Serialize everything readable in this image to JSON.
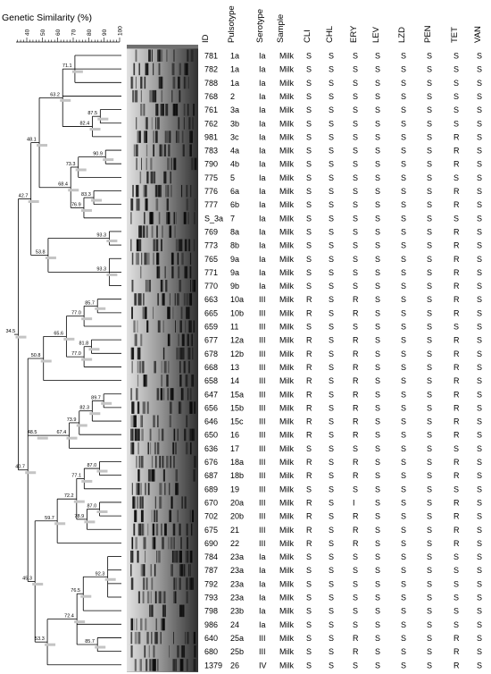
{
  "scale": {
    "title": "Genetic Similarity (%)",
    "ticks": [
      "40",
      "50",
      "60",
      "70",
      "80",
      "90",
      "100"
    ]
  },
  "headers": [
    "ID",
    "Pulsotype",
    "Serotype",
    "Sample",
    "CLI",
    "CHL",
    "ERY",
    "LEV",
    "LZD",
    "PEN",
    "TET",
    "VAN"
  ],
  "rows": [
    [
      "781",
      "1a",
      "Ia",
      "Milk",
      "S",
      "S",
      "S",
      "S",
      "S",
      "S",
      "S",
      "S"
    ],
    [
      "782",
      "1a",
      "Ia",
      "Milk",
      "S",
      "S",
      "S",
      "S",
      "S",
      "S",
      "S",
      "S"
    ],
    [
      "788",
      "1a",
      "Ia",
      "Milk",
      "S",
      "S",
      "S",
      "S",
      "S",
      "S",
      "S",
      "S"
    ],
    [
      "768",
      "2",
      "Ia",
      "Milk",
      "S",
      "S",
      "S",
      "S",
      "S",
      "S",
      "S",
      "S"
    ],
    [
      "761",
      "3a",
      "Ia",
      "Milk",
      "S",
      "S",
      "S",
      "S",
      "S",
      "S",
      "S",
      "S"
    ],
    [
      "762",
      "3b",
      "Ia",
      "Milk",
      "S",
      "S",
      "S",
      "S",
      "S",
      "S",
      "S",
      "S"
    ],
    [
      "981",
      "3c",
      "Ia",
      "Milk",
      "S",
      "S",
      "S",
      "S",
      "S",
      "S",
      "R",
      "S"
    ],
    [
      "783",
      "4a",
      "Ia",
      "Milk",
      "S",
      "S",
      "S",
      "S",
      "S",
      "S",
      "R",
      "S"
    ],
    [
      "790",
      "4b",
      "Ia",
      "Milk",
      "S",
      "S",
      "S",
      "S",
      "S",
      "S",
      "R",
      "S"
    ],
    [
      "775",
      "5",
      "Ia",
      "Milk",
      "S",
      "S",
      "S",
      "S",
      "S",
      "S",
      "S",
      "S"
    ],
    [
      "776",
      "6a",
      "Ia",
      "Milk",
      "S",
      "S",
      "S",
      "S",
      "S",
      "S",
      "R",
      "S"
    ],
    [
      "777",
      "6b",
      "Ia",
      "Milk",
      "S",
      "S",
      "S",
      "S",
      "S",
      "S",
      "R",
      "S"
    ],
    [
      "S_3a",
      "7",
      "Ia",
      "Milk",
      "S",
      "S",
      "S",
      "S",
      "S",
      "S",
      "S",
      "S"
    ],
    [
      "769",
      "8a",
      "Ia",
      "Milk",
      "S",
      "S",
      "S",
      "S",
      "S",
      "S",
      "R",
      "S"
    ],
    [
      "773",
      "8b",
      "Ia",
      "Milk",
      "S",
      "S",
      "S",
      "S",
      "S",
      "S",
      "R",
      "S"
    ],
    [
      "765",
      "9a",
      "Ia",
      "Milk",
      "S",
      "S",
      "S",
      "S",
      "S",
      "S",
      "R",
      "S"
    ],
    [
      "771",
      "9a",
      "Ia",
      "Milk",
      "S",
      "S",
      "S",
      "S",
      "S",
      "S",
      "R",
      "S"
    ],
    [
      "770",
      "9b",
      "Ia",
      "Milk",
      "S",
      "S",
      "S",
      "S",
      "S",
      "S",
      "R",
      "S"
    ],
    [
      "663",
      "10a",
      "III",
      "Milk",
      "R",
      "S",
      "R",
      "S",
      "S",
      "S",
      "R",
      "S"
    ],
    [
      "665",
      "10b",
      "III",
      "Milk",
      "R",
      "S",
      "R",
      "S",
      "S",
      "S",
      "R",
      "S"
    ],
    [
      "659",
      "11",
      "III",
      "Milk",
      "S",
      "S",
      "S",
      "S",
      "S",
      "S",
      "S",
      "S"
    ],
    [
      "677",
      "12a",
      "III",
      "Milk",
      "R",
      "S",
      "R",
      "S",
      "S",
      "S",
      "R",
      "S"
    ],
    [
      "678",
      "12b",
      "III",
      "Milk",
      "R",
      "S",
      "R",
      "S",
      "S",
      "S",
      "R",
      "S"
    ],
    [
      "668",
      "13",
      "III",
      "Milk",
      "R",
      "S",
      "R",
      "S",
      "S",
      "S",
      "R",
      "S"
    ],
    [
      "658",
      "14",
      "III",
      "Milk",
      "R",
      "S",
      "R",
      "S",
      "S",
      "S",
      "R",
      "S"
    ],
    [
      "647",
      "15a",
      "III",
      "Milk",
      "R",
      "S",
      "R",
      "S",
      "S",
      "S",
      "R",
      "S"
    ],
    [
      "656",
      "15b",
      "III",
      "Milk",
      "R",
      "S",
      "R",
      "S",
      "S",
      "S",
      "R",
      "S"
    ],
    [
      "646",
      "15c",
      "III",
      "Milk",
      "R",
      "S",
      "R",
      "S",
      "S",
      "S",
      "R",
      "S"
    ],
    [
      "650",
      "16",
      "III",
      "Milk",
      "R",
      "S",
      "R",
      "S",
      "S",
      "S",
      "R",
      "S"
    ],
    [
      "636",
      "17",
      "III",
      "Milk",
      "S",
      "S",
      "S",
      "S",
      "S",
      "S",
      "S",
      "S"
    ],
    [
      "676",
      "18a",
      "III",
      "Milk",
      "R",
      "S",
      "R",
      "S",
      "S",
      "S",
      "R",
      "S"
    ],
    [
      "687",
      "18b",
      "III",
      "Milk",
      "R",
      "S",
      "R",
      "S",
      "S",
      "S",
      "R",
      "S"
    ],
    [
      "689",
      "19",
      "III",
      "Milk",
      "S",
      "S",
      "S",
      "S",
      "S",
      "S",
      "S",
      "S"
    ],
    [
      "670",
      "20a",
      "III",
      "Milk",
      "R",
      "S",
      "I",
      "S",
      "S",
      "S",
      "R",
      "S"
    ],
    [
      "702",
      "20b",
      "III",
      "Milk",
      "R",
      "S",
      "R",
      "S",
      "S",
      "S",
      "R",
      "S"
    ],
    [
      "675",
      "21",
      "III",
      "Milk",
      "R",
      "S",
      "R",
      "S",
      "S",
      "S",
      "R",
      "S"
    ],
    [
      "690",
      "22",
      "III",
      "Milk",
      "R",
      "S",
      "R",
      "S",
      "S",
      "S",
      "R",
      "S"
    ],
    [
      "784",
      "23a",
      "Ia",
      "Milk",
      "S",
      "S",
      "S",
      "S",
      "S",
      "S",
      "S",
      "S"
    ],
    [
      "787",
      "23a",
      "Ia",
      "Milk",
      "S",
      "S",
      "S",
      "S",
      "S",
      "S",
      "S",
      "S"
    ],
    [
      "792",
      "23a",
      "Ia",
      "Milk",
      "S",
      "S",
      "S",
      "S",
      "S",
      "S",
      "S",
      "S"
    ],
    [
      "793",
      "23a",
      "Ia",
      "Milk",
      "S",
      "S",
      "S",
      "S",
      "S",
      "S",
      "S",
      "S"
    ],
    [
      "798",
      "23b",
      "Ia",
      "Milk",
      "S",
      "S",
      "S",
      "S",
      "S",
      "S",
      "S",
      "S"
    ],
    [
      "986",
      "24",
      "Ia",
      "Milk",
      "S",
      "S",
      "S",
      "S",
      "S",
      "S",
      "S",
      "S"
    ],
    [
      "640",
      "25a",
      "III",
      "Milk",
      "S",
      "S",
      "R",
      "S",
      "S",
      "S",
      "R",
      "S"
    ],
    [
      "680",
      "25b",
      "III",
      "Milk",
      "S",
      "S",
      "R",
      "S",
      "S",
      "S",
      "R",
      "S"
    ],
    [
      "1379",
      "26",
      "IV",
      "Milk",
      "S",
      "S",
      "S",
      "S",
      "S",
      "S",
      "R",
      "S"
    ]
  ],
  "nodes": [
    {
      "id": "n1",
      "label": "71.1",
      "sim": 71.1,
      "children": [
        "L0",
        "L1",
        "L2"
      ]
    },
    {
      "id": "n2",
      "label": "87.5",
      "sim": 87.5,
      "children": [
        "L4",
        "L5"
      ]
    },
    {
      "id": "n3",
      "label": "82.4",
      "sim": 82.4,
      "children": [
        "n2",
        "L6"
      ]
    },
    {
      "id": "n4",
      "label": "63.2",
      "sim": 63.2,
      "children": [
        "n1",
        "L3",
        "n3"
      ]
    },
    {
      "id": "n5",
      "label": "90.9",
      "sim": 90.9,
      "children": [
        "L7",
        "L8"
      ]
    },
    {
      "id": "n6",
      "label": "73.3",
      "sim": 73.3,
      "children": [
        "n5",
        "L9"
      ]
    },
    {
      "id": "n7",
      "label": "83.3",
      "sim": 83.3,
      "children": [
        "L10",
        "L11"
      ]
    },
    {
      "id": "n8",
      "label": "76.9",
      "sim": 76.9,
      "children": [
        "n7",
        "L12"
      ]
    },
    {
      "id": "n9",
      "label": "68.4",
      "sim": 68.4,
      "children": [
        "n6",
        "n8"
      ]
    },
    {
      "id": "n10",
      "label": "48.1",
      "sim": 48.1,
      "children": [
        "n4",
        "n9"
      ]
    },
    {
      "id": "n11",
      "label": "93.3",
      "sim": 93.3,
      "children": [
        "L13",
        "L14"
      ]
    },
    {
      "id": "n12",
      "label": "93.3",
      "sim": 93.3,
      "children": [
        "L15",
        "L16",
        "L17"
      ]
    },
    {
      "id": "n13",
      "label": "53.8",
      "sim": 53.8,
      "children": [
        "n11",
        "n12"
      ]
    },
    {
      "id": "n14",
      "label": "42.7",
      "sim": 42.7,
      "children": [
        "n10",
        "n13"
      ]
    },
    {
      "id": "n15",
      "label": "85.7",
      "sim": 85.7,
      "children": [
        "L18",
        "L19"
      ]
    },
    {
      "id": "n16",
      "label": "77.0",
      "sim": 77.0,
      "children": [
        "n15",
        "L20"
      ]
    },
    {
      "id": "n17",
      "label": "81.8",
      "sim": 81.8,
      "children": [
        "L21",
        "L22"
      ]
    },
    {
      "id": "n18",
      "label": "77.0",
      "sim": 77.0,
      "children": [
        "n17",
        "L23"
      ]
    },
    {
      "id": "n19",
      "label": "65.6",
      "sim": 65.6,
      "children": [
        "n16",
        "n18"
      ]
    },
    {
      "id": "n20",
      "label": "50.8",
      "sim": 50.8,
      "children": [
        "n19",
        "L24"
      ]
    },
    {
      "id": "n21",
      "label": "89.7",
      "sim": 89.7,
      "children": [
        "L25",
        "L26"
      ]
    },
    {
      "id": "n22",
      "label": "82.3",
      "sim": 82.3,
      "children": [
        "n21",
        "L27"
      ]
    },
    {
      "id": "n23",
      "label": "73.9",
      "sim": 73.9,
      "children": [
        "n22",
        "L28"
      ]
    },
    {
      "id": "n24",
      "label": "67.4",
      "sim": 67.4,
      "children": [
        "n23",
        "L29"
      ]
    },
    {
      "id": "n25",
      "label": "48.5",
      "sim": 48.5,
      "children": [
        "n24"
      ]
    },
    {
      "id": "n26",
      "label": "87.0",
      "sim": 87.0,
      "children": [
        "L30",
        "L31"
      ]
    },
    {
      "id": "n27",
      "label": "77.1",
      "sim": 77.1,
      "children": [
        "n26",
        "L32"
      ]
    },
    {
      "id": "n28",
      "label": "87.0",
      "sim": 87.0,
      "children": [
        "L33",
        "L34"
      ]
    },
    {
      "id": "n29",
      "label": "78.9",
      "sim": 78.9,
      "children": [
        "n28",
        "L35"
      ]
    },
    {
      "id": "n30",
      "label": "72.2",
      "sim": 72.2,
      "children": [
        "n27",
        "n29"
      ]
    },
    {
      "id": "n31",
      "label": "59.7",
      "sim": 59.7,
      "children": [
        "n30",
        "L36"
      ]
    },
    {
      "id": "n32",
      "label": "92.3",
      "sim": 92.3,
      "children": [
        "L37",
        "L38",
        "L39",
        "L40"
      ]
    },
    {
      "id": "n33",
      "label": "76.5",
      "sim": 76.5,
      "children": [
        "n32",
        "L41"
      ]
    },
    {
      "id": "n34",
      "label": "85.7",
      "sim": 85.7,
      "children": [
        "L43",
        "L44"
      ]
    },
    {
      "id": "n35",
      "label": "72.4",
      "sim": 72.4,
      "children": [
        "n33",
        "L42",
        "n34"
      ]
    },
    {
      "id": "n36",
      "label": "53.3",
      "sim": 53.3,
      "children": [
        "n35",
        "L45"
      ]
    },
    {
      "id": "n37",
      "label": "45.3",
      "sim": 45.3,
      "children": [
        "n31",
        "n36"
      ]
    },
    {
      "id": "n38",
      "label": "40.7",
      "sim": 40.7,
      "children": [
        "n20",
        "n25",
        "n37"
      ]
    },
    {
      "id": "n39",
      "label": "34.5",
      "sim": 34.5,
      "children": [
        "n14",
        "n38"
      ]
    }
  ],
  "gel_palette": {
    "light": "#e2e2e2",
    "mid": "#9a9a9a",
    "dark": "#303030",
    "band": "#0a0a0a"
  }
}
